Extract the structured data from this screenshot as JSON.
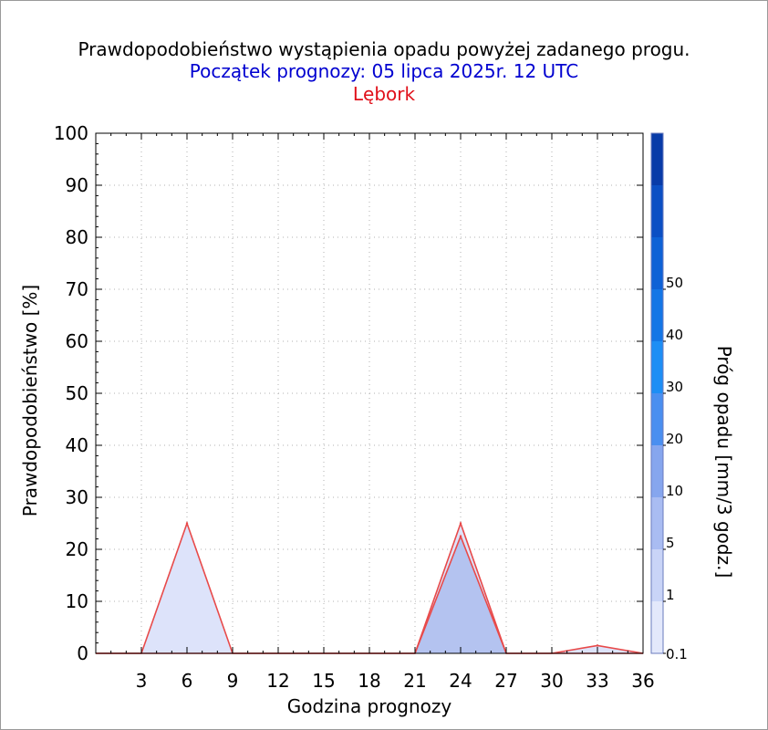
{
  "title": "Prawdopodobieństwo wystąpienia opadu powyżej zadanego progu.",
  "subtitle": "Początek prognozy: 05 lipca 2025r. 12 UTC",
  "location": "Lębork",
  "chart_data": {
    "type": "area",
    "title": "Prawdopodobieństwo wystąpienia opadu powyżej zadanego progu.",
    "subtitle": "Początek prognozy: 05 lipca 2025r. 12 UTC",
    "location": "Lębork",
    "xlabel": "Godzina prognozy",
    "ylabel": "Prawdopodobieństwo [%]",
    "colorbar_label": "Próg opadu [mm/3 godz.]",
    "xlim": [
      0,
      36
    ],
    "ylim": [
      0,
      100
    ],
    "x": [
      0,
      3,
      6,
      9,
      12,
      15,
      18,
      21,
      24,
      27,
      30,
      33,
      36
    ],
    "x_tick_labels": [
      "3",
      "6",
      "9",
      "12",
      "15",
      "18",
      "21",
      "24",
      "27",
      "30",
      "33",
      "36"
    ],
    "y_tick_labels": [
      "0",
      "10",
      "20",
      "30",
      "40",
      "50",
      "60",
      "70",
      "80",
      "90",
      "100"
    ],
    "grid": true,
    "series": [
      {
        "name": "0.1",
        "color": "#dde3fa",
        "values": [
          0,
          0,
          25,
          0,
          0,
          0,
          0,
          0,
          25,
          0,
          0,
          1.5,
          0
        ]
      },
      {
        "name": "1",
        "color": "#b4c3f0",
        "values": [
          0,
          0,
          0,
          0,
          0,
          0,
          0,
          0,
          22.5,
          0,
          0,
          0,
          0
        ]
      }
    ],
    "colorbar": {
      "labels": [
        "0.1",
        "1",
        "5",
        "10",
        "20",
        "30",
        "40",
        "50"
      ],
      "colors": [
        "#e3e8fb",
        "#c9d4f7",
        "#a9bcf2",
        "#86a6ee",
        "#4a8ff0",
        "#1d8ef5",
        "#1476e6",
        "#0e62d6",
        "#0b4fc4",
        "#083ba8"
      ]
    }
  }
}
